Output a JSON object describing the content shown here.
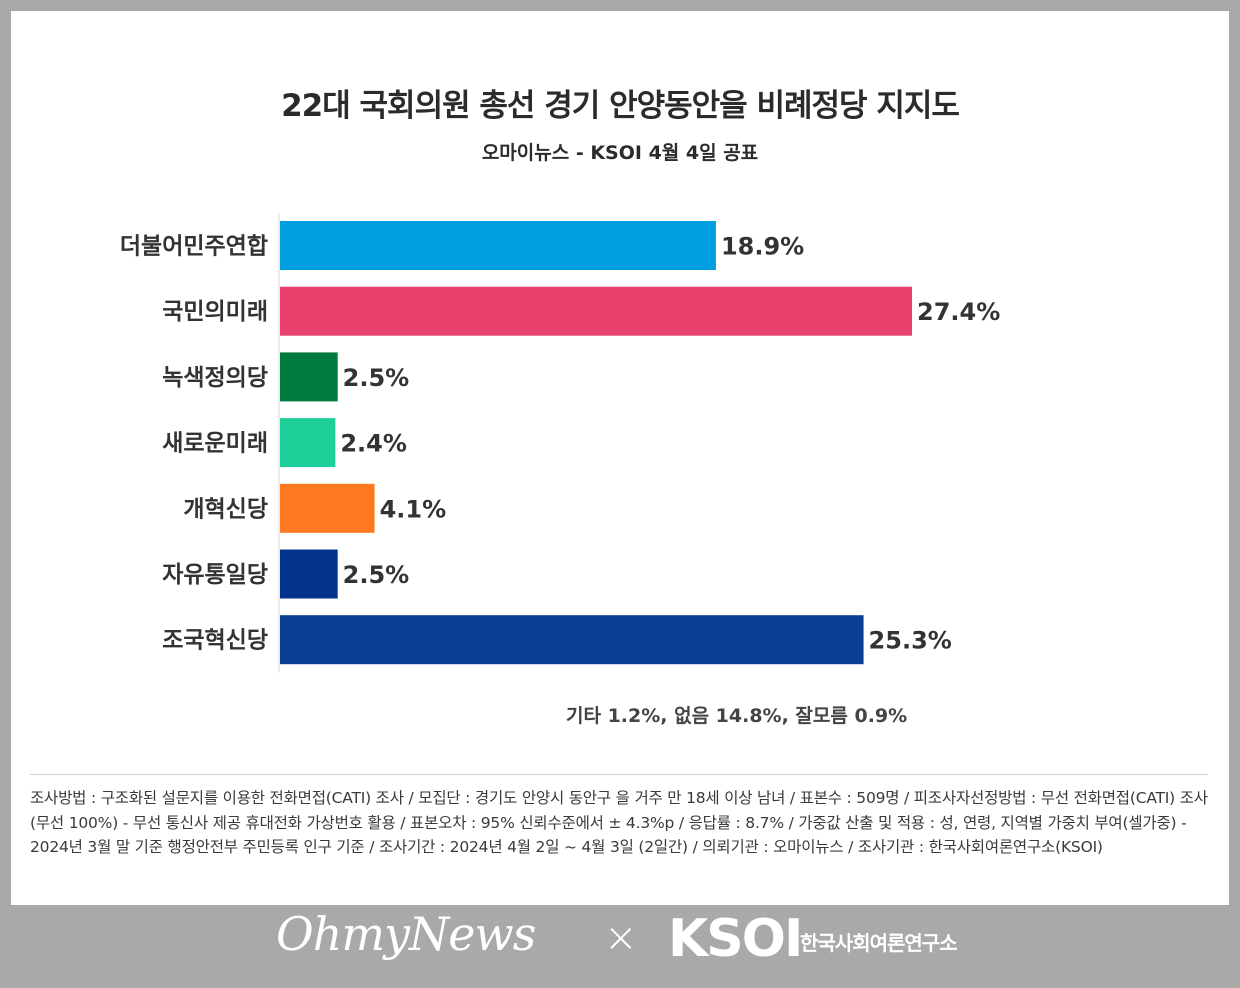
{
  "chart_data": {
    "type": "bar",
    "orientation": "horizontal",
    "title": "22대 국회의원 총선 경기 안양동안을 비례정당 지지도",
    "subtitle": "오마이뉴스 - KSOI 4월 4일 공표",
    "categories": [
      "더불어민주연합",
      "국민의미래",
      "녹색정의당",
      "새로운미래",
      "개혁신당",
      "자유통일당",
      "조국혁신당"
    ],
    "values": [
      18.9,
      27.4,
      2.5,
      2.4,
      4.1,
      2.5,
      25.3
    ],
    "value_labels": [
      "18.9%",
      "27.4%",
      "2.5%",
      "2.4%",
      "4.1%",
      "2.5%",
      "25.3%"
    ],
    "colors": [
      "#009fdf",
      "#e9416e",
      "#007a3d",
      "#1dd09a",
      "#ff7920",
      "#04338e",
      "#0b3f95"
    ],
    "xlim": [
      0,
      27.4
    ],
    "grid": false,
    "legend": "none",
    "annotation": "기타 1.2%, 없음 14.8%, 잘모름 0.9%"
  },
  "methodology": "조사방법 : 구조화된 설문지를 이용한 전화면접(CATI) 조사 / 모집단 : 경기도 안양시 동안구 을 거주 만 18세 이상 남녀 / 표본수 : 509명 / 피조사자선정방법 : 무선 전화면접(CATI) 조사 (무선 100%) - 무선 통신사 제공 휴대전화 가상번호 활용 / 표본오차 : 95% 신뢰수준에서 ± 4.3%p / 응답률 : 8.7% / 가중값 산출 및 적용 : 성, 연령, 지역별 가중치 부여(셀가중) - 2024년 3월 말 기준 행정안전부 주민등록 인구 기준 / 조사기간 : 2024년 4월 2일 ~ 4월 3일 (2일간) / 의뢰기관 : 오마이뉴스 / 조사기관 : 한국사회여론연구소(KSOI)",
  "footer": {
    "logo_ohmynews": "OhmyNews",
    "separator": "×",
    "logo_ksoi": "KSOI",
    "logo_ksoi_sub": "한국사회여론연구소"
  }
}
